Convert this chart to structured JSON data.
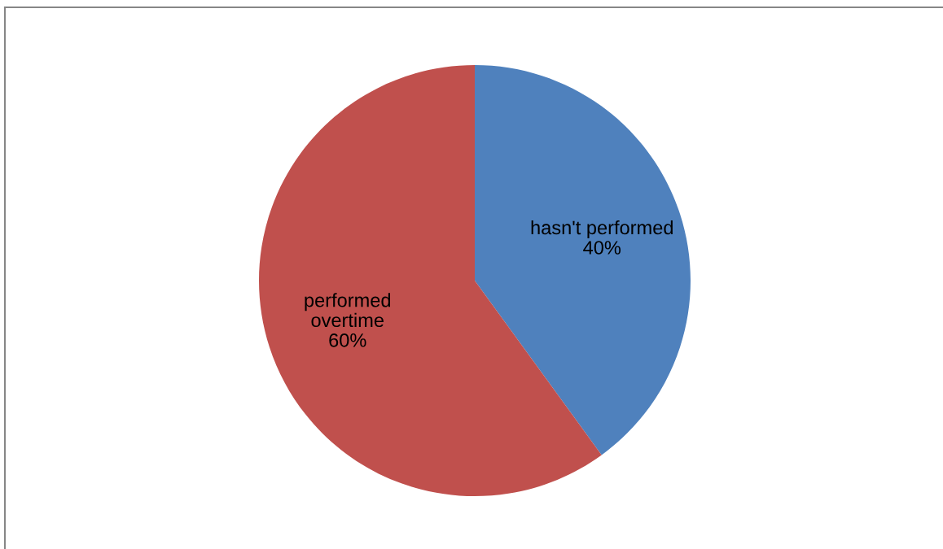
{
  "chart_data": {
    "type": "pie",
    "categories": [
      "hasn't performed",
      "performed overtime"
    ],
    "values": [
      40,
      60
    ],
    "colors": [
      "#4f81bd",
      "#c0504d"
    ],
    "value_labels": [
      "40%",
      "60%"
    ]
  }
}
